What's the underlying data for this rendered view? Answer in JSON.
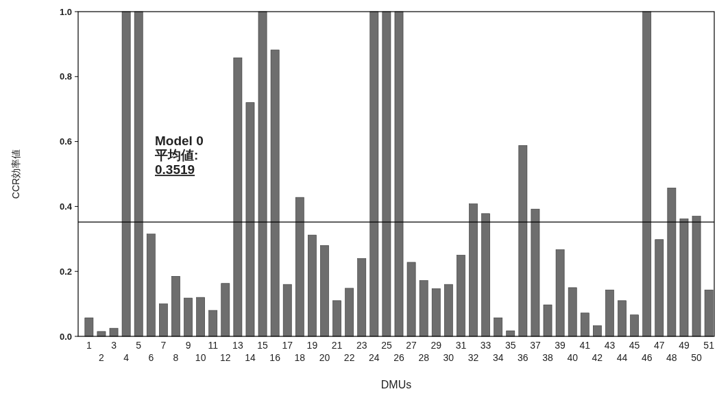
{
  "chart_data": {
    "type": "bar",
    "xlabel": "DMUs",
    "ylabel": "CCR効率値",
    "categories": [
      "1",
      "2",
      "3",
      "4",
      "5",
      "6",
      "7",
      "8",
      "9",
      "10",
      "11",
      "12",
      "13",
      "14",
      "15",
      "16",
      "17",
      "18",
      "19",
      "20",
      "21",
      "22",
      "23",
      "24",
      "25",
      "26",
      "27",
      "28",
      "29",
      "30",
      "31",
      "32",
      "33",
      "34",
      "35",
      "36",
      "37",
      "38",
      "39",
      "40",
      "41",
      "42",
      "43",
      "44",
      "45",
      "46",
      "47",
      "48",
      "49",
      "50",
      "51"
    ],
    "values": [
      0.057,
      0.015,
      0.025,
      1,
      1,
      0.315,
      0.1,
      0.185,
      0.118,
      0.12,
      0.08,
      0.163,
      0.858,
      0.72,
      1,
      0.882,
      0.16,
      0.428,
      0.312,
      0.28,
      0.11,
      0.148,
      0.24,
      1,
      1,
      1,
      0.228,
      0.172,
      0.147,
      0.16,
      0.25,
      0.408,
      0.378,
      0.057,
      0.017,
      0.588,
      0.392,
      0.097,
      0.267,
      0.15,
      0.072,
      0.033,
      0.143,
      0.11,
      0.066,
      1,
      0.298,
      0.457,
      0.362,
      0.37,
      0.143
    ],
    "color": "#6e6e6e",
    "ylim": [
      0,
      1
    ],
    "yticks": [
      {
        "value": 0,
        "label": "0.0"
      },
      {
        "value": 0.2,
        "label": "0.2"
      },
      {
        "value": 0.4,
        "label": "0.4"
      },
      {
        "value": 0.6,
        "label": "0.6"
      },
      {
        "value": 0.8,
        "label": "0.8"
      },
      {
        "value": 1,
        "label": "1.0"
      }
    ],
    "grid": false,
    "ref_lines": [
      {
        "axis": "y",
        "value": 0.3519,
        "label": "Model 0\n平均値:\n0.3519",
        "color": "#000000"
      }
    ]
  }
}
